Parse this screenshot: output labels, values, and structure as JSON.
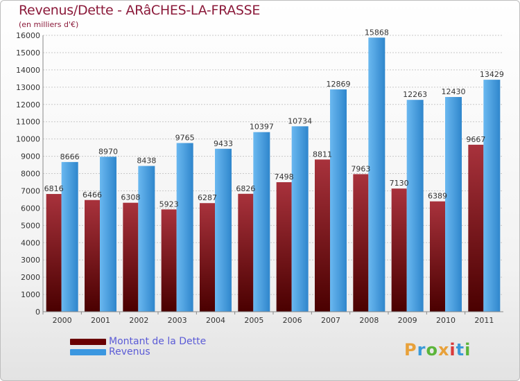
{
  "title": "Revenus/Dette - ARâCHES-LA-FRASSE",
  "subtitle": "(en milliers d'€)",
  "colors": {
    "dette": "#7a0a0f",
    "revenus": "#4da3e6",
    "title": "#8b1a3a",
    "legend_text": "#5b5bd6"
  },
  "legend": [
    {
      "label": "Montant de la Dette",
      "color": "#6a0000"
    },
    {
      "label": "Revenus",
      "color": "#3b97e0"
    }
  ],
  "logo": {
    "text": "Proxiti",
    "colors": [
      "#e8a13a",
      "#3a9ad9",
      "#5bb53a",
      "#e8a13a",
      "#d93a3a",
      "#3a9ad9",
      "#5bb53a"
    ]
  },
  "chart_data": {
    "type": "bar",
    "title": "Revenus/Dette - ARâCHES-LA-FRASSE",
    "ylabel": "(en milliers d'€)",
    "categories": [
      "2000",
      "2001",
      "2002",
      "2003",
      "2004",
      "2005",
      "2006",
      "2007",
      "2008",
      "2009",
      "2010",
      "2011"
    ],
    "series": [
      {
        "name": "Montant de la Dette",
        "values": [
          6816,
          6466,
          6308,
          5923,
          6287,
          6826,
          7498,
          8811,
          7963,
          7130,
          6389,
          9667
        ]
      },
      {
        "name": "Revenus",
        "values": [
          8666,
          8970,
          8438,
          9765,
          9433,
          10397,
          10734,
          12869,
          15868,
          12263,
          12430,
          13429
        ]
      }
    ],
    "ylim": [
      0,
      16000
    ],
    "yticks": [
      0,
      1000,
      2000,
      3000,
      4000,
      5000,
      6000,
      7000,
      8000,
      9000,
      10000,
      11000,
      12000,
      13000,
      14000,
      15000,
      16000
    ],
    "grid": true,
    "legend_position": "bottom-left"
  }
}
